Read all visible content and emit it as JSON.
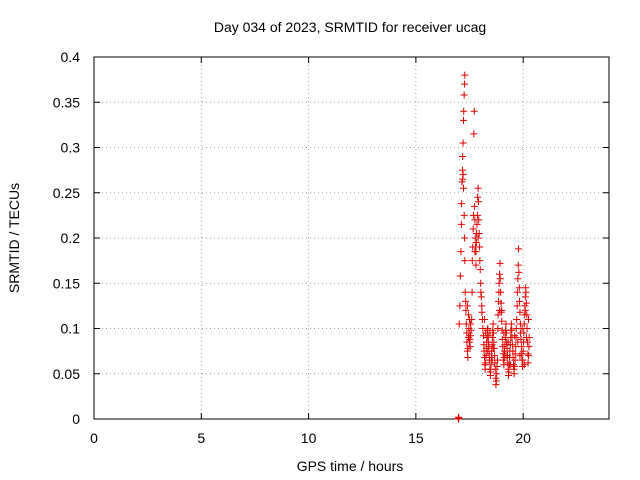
{
  "chart_data": {
    "type": "scatter",
    "title": "Day 034 of 2023, SRMTID for receiver ucag",
    "xlabel": "GPS time / hours",
    "ylabel": "SRMTID / TECUs",
    "xlim": [
      0,
      24
    ],
    "ylim": [
      0,
      0.4
    ],
    "xticks": [
      0,
      5,
      10,
      15,
      20
    ],
    "xtick_labels": [
      "0",
      "5",
      "10",
      "15",
      "20"
    ],
    "yticks": [
      0,
      0.05,
      0.1,
      0.15,
      0.2,
      0.25,
      0.3,
      0.35,
      0.4
    ],
    "ytick_labels": [
      "0",
      "0.05",
      "0.1",
      "0.15",
      "0.2",
      "0.25",
      "0.3",
      "0.35",
      "0.4"
    ],
    "grid": true,
    "marker": "plus",
    "series": [
      {
        "name": "SRMTID",
        "color": "#e00000",
        "points": [
          [
            16.98,
            0.0
          ],
          [
            16.99,
            0.002
          ],
          [
            17.0,
            0.001
          ],
          [
            17.02,
            0.105
          ],
          [
            17.05,
            0.125
          ],
          [
            17.07,
            0.158
          ],
          [
            17.1,
            0.185
          ],
          [
            17.12,
            0.215
          ],
          [
            17.13,
            0.238
          ],
          [
            17.15,
            0.262
          ],
          [
            17.17,
            0.275
          ],
          [
            17.18,
            0.29
          ],
          [
            17.2,
            0.305
          ],
          [
            17.22,
            0.33
          ],
          [
            17.23,
            0.34
          ],
          [
            17.25,
            0.358
          ],
          [
            17.27,
            0.37
          ],
          [
            17.28,
            0.38
          ],
          [
            17.18,
            0.265
          ],
          [
            17.2,
            0.27
          ],
          [
            17.22,
            0.255
          ],
          [
            17.25,
            0.225
          ],
          [
            17.27,
            0.2
          ],
          [
            17.28,
            0.175
          ],
          [
            17.3,
            0.14
          ],
          [
            17.32,
            0.13
          ],
          [
            17.33,
            0.12
          ],
          [
            17.35,
            0.105
          ],
          [
            17.37,
            0.095
          ],
          [
            17.38,
            0.085
          ],
          [
            17.4,
            0.075
          ],
          [
            17.42,
            0.068
          ],
          [
            17.43,
            0.078
          ],
          [
            17.45,
            0.09
          ],
          [
            17.47,
            0.1
          ],
          [
            17.48,
            0.095
          ],
          [
            17.5,
            0.085
          ],
          [
            17.52,
            0.088
          ],
          [
            17.53,
            0.08
          ],
          [
            17.55,
            0.092
          ],
          [
            17.57,
            0.098
          ],
          [
            17.4,
            0.125
          ],
          [
            17.45,
            0.115
          ],
          [
            17.5,
            0.11
          ],
          [
            17.55,
            0.105
          ],
          [
            17.6,
            0.11
          ],
          [
            17.62,
            0.14
          ],
          [
            17.63,
            0.175
          ],
          [
            17.65,
            0.19
          ],
          [
            17.67,
            0.21
          ],
          [
            17.68,
            0.225
          ],
          [
            17.7,
            0.315
          ],
          [
            17.72,
            0.34
          ],
          [
            17.73,
            0.235
          ],
          [
            17.75,
            0.22
          ],
          [
            17.77,
            0.2
          ],
          [
            17.78,
            0.19
          ],
          [
            17.8,
            0.185
          ],
          [
            17.82,
            0.195
          ],
          [
            17.83,
            0.205
          ],
          [
            17.85,
            0.215
          ],
          [
            17.87,
            0.225
          ],
          [
            17.88,
            0.245
          ],
          [
            17.9,
            0.255
          ],
          [
            17.92,
            0.24
          ],
          [
            17.93,
            0.22
          ],
          [
            17.95,
            0.205
          ],
          [
            17.97,
            0.19
          ],
          [
            17.98,
            0.175
          ],
          [
            18.0,
            0.165
          ],
          [
            18.02,
            0.15
          ],
          [
            18.03,
            0.14
          ],
          [
            18.05,
            0.135
          ],
          [
            18.07,
            0.125
          ],
          [
            18.08,
            0.118
          ],
          [
            18.1,
            0.11
          ],
          [
            18.12,
            0.1
          ],
          [
            17.75,
            0.185
          ],
          [
            17.8,
            0.17
          ],
          [
            17.9,
            0.2
          ],
          [
            18.15,
            0.092
          ],
          [
            18.17,
            0.082
          ],
          [
            18.18,
            0.075
          ],
          [
            18.2,
            0.068
          ],
          [
            18.22,
            0.06
          ],
          [
            18.23,
            0.055
          ],
          [
            18.25,
            0.062
          ],
          [
            18.27,
            0.07
          ],
          [
            18.28,
            0.078
          ],
          [
            18.3,
            0.085
          ],
          [
            18.32,
            0.09
          ],
          [
            18.33,
            0.098
          ],
          [
            18.35,
            0.1
          ],
          [
            18.37,
            0.092
          ],
          [
            18.38,
            0.085
          ],
          [
            18.4,
            0.08
          ],
          [
            18.42,
            0.072
          ],
          [
            18.43,
            0.065
          ],
          [
            18.45,
            0.055
          ],
          [
            18.47,
            0.048
          ],
          [
            18.48,
            0.052
          ],
          [
            18.5,
            0.06
          ],
          [
            18.52,
            0.068
          ],
          [
            18.53,
            0.075
          ],
          [
            18.55,
            0.082
          ],
          [
            18.57,
            0.09
          ],
          [
            18.58,
            0.098
          ],
          [
            18.6,
            0.105
          ],
          [
            18.62,
            0.095
          ],
          [
            18.63,
            0.085
          ],
          [
            18.65,
            0.078
          ],
          [
            18.67,
            0.07
          ],
          [
            18.68,
            0.062
          ],
          [
            18.7,
            0.055
          ],
          [
            18.72,
            0.045
          ],
          [
            18.73,
            0.038
          ],
          [
            18.75,
            0.042
          ],
          [
            18.77,
            0.05
          ],
          [
            18.78,
            0.058
          ],
          [
            18.8,
            0.065
          ],
          [
            18.2,
            0.11
          ],
          [
            18.25,
            0.095
          ],
          [
            18.35,
            0.075
          ],
          [
            18.45,
            0.095
          ],
          [
            18.55,
            0.065
          ],
          [
            18.82,
            0.1
          ],
          [
            18.83,
            0.115
          ],
          [
            18.85,
            0.13
          ],
          [
            18.87,
            0.14
          ],
          [
            18.88,
            0.15
          ],
          [
            18.9,
            0.16
          ],
          [
            18.92,
            0.172
          ],
          [
            18.93,
            0.155
          ],
          [
            18.95,
            0.14
          ],
          [
            18.97,
            0.128
          ],
          [
            18.98,
            0.118
          ],
          [
            19.0,
            0.108
          ],
          [
            19.02,
            0.098
          ],
          [
            19.03,
            0.088
          ],
          [
            19.05,
            0.08
          ],
          [
            19.07,
            0.072
          ],
          [
            19.08,
            0.065
          ],
          [
            19.1,
            0.06
          ],
          [
            19.12,
            0.068
          ],
          [
            19.13,
            0.075
          ],
          [
            19.15,
            0.082
          ],
          [
            19.17,
            0.09
          ],
          [
            19.18,
            0.098
          ],
          [
            19.2,
            0.105
          ],
          [
            19.22,
            0.095
          ],
          [
            19.23,
            0.085
          ],
          [
            19.25,
            0.078
          ],
          [
            19.27,
            0.07
          ],
          [
            19.28,
            0.062
          ],
          [
            19.3,
            0.055
          ],
          [
            19.32,
            0.048
          ],
          [
            19.33,
            0.052
          ],
          [
            19.35,
            0.06
          ],
          [
            19.37,
            0.068
          ],
          [
            19.38,
            0.075
          ],
          [
            19.4,
            0.082
          ],
          [
            19.42,
            0.09
          ],
          [
            19.43,
            0.098
          ],
          [
            19.45,
            0.105
          ],
          [
            19.47,
            0.098
          ],
          [
            19.48,
            0.09
          ],
          [
            19.5,
            0.082
          ],
          [
            19.52,
            0.075
          ],
          [
            19.53,
            0.068
          ],
          [
            19.55,
            0.06
          ],
          [
            19.57,
            0.055
          ],
          [
            19.58,
            0.05
          ],
          [
            19.6,
            0.058
          ],
          [
            19.62,
            0.065
          ],
          [
            19.63,
            0.072
          ],
          [
            19.0,
            0.12
          ],
          [
            19.1,
            0.095
          ],
          [
            19.2,
            0.07
          ],
          [
            19.3,
            0.085
          ],
          [
            19.4,
            0.06
          ],
          [
            19.65,
            0.08
          ],
          [
            19.67,
            0.09
          ],
          [
            19.68,
            0.1
          ],
          [
            19.7,
            0.11
          ],
          [
            19.72,
            0.125
          ],
          [
            19.73,
            0.14
          ],
          [
            19.75,
            0.155
          ],
          [
            19.77,
            0.17
          ],
          [
            19.78,
            0.188
          ],
          [
            19.8,
            0.162
          ],
          [
            19.82,
            0.145
          ],
          [
            19.83,
            0.13
          ],
          [
            19.85,
            0.118
          ],
          [
            19.87,
            0.105
          ],
          [
            19.88,
            0.095
          ],
          [
            19.9,
            0.088
          ],
          [
            19.92,
            0.08
          ],
          [
            19.93,
            0.072
          ],
          [
            19.95,
            0.065
          ],
          [
            19.97,
            0.058
          ],
          [
            19.98,
            0.065
          ],
          [
            20.0,
            0.075
          ],
          [
            20.02,
            0.085
          ],
          [
            20.03,
            0.095
          ],
          [
            20.05,
            0.105
          ],
          [
            20.07,
            0.115
          ],
          [
            20.08,
            0.125
          ],
          [
            20.1,
            0.135
          ],
          [
            20.12,
            0.145
          ],
          [
            20.13,
            0.14
          ],
          [
            20.15,
            0.128
          ],
          [
            20.17,
            0.115
          ],
          [
            20.18,
            0.1
          ],
          [
            20.2,
            0.085
          ],
          [
            20.22,
            0.072
          ],
          [
            20.23,
            0.062
          ],
          [
            20.25,
            0.07
          ],
          [
            20.27,
            0.08
          ],
          [
            20.28,
            0.09
          ],
          [
            19.85,
            0.07
          ],
          [
            19.95,
            0.1
          ],
          [
            20.05,
            0.06
          ],
          [
            20.15,
            0.09
          ],
          [
            20.25,
            0.11
          ],
          [
            19.75,
            0.085
          ],
          [
            19.6,
            0.092
          ],
          [
            20.1,
            0.12
          ],
          [
            18.9,
            0.12
          ],
          [
            18.6,
            0.078
          ]
        ]
      }
    ]
  }
}
